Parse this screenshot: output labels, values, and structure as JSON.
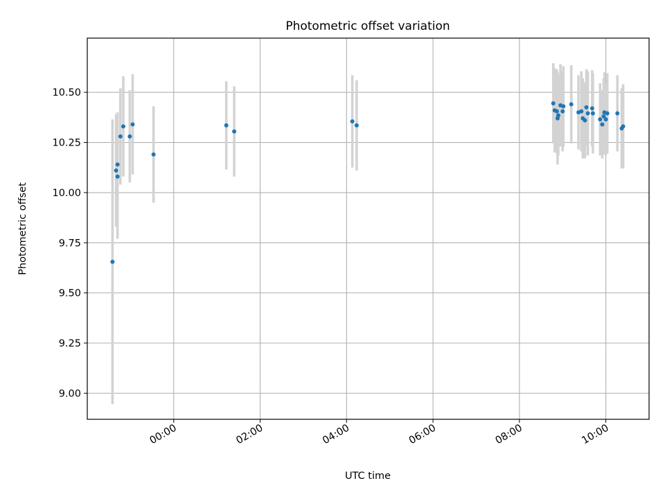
{
  "chart_data": {
    "type": "scatter",
    "title": "Photometric offset variation",
    "xlabel": "UTC time",
    "ylabel": "Photometric offset",
    "xlim": [
      "-02:00",
      "11:00"
    ],
    "ylim": [
      8.87,
      10.77
    ],
    "grid": true,
    "x_ticks": [
      "00:00",
      "02:00",
      "04:00",
      "06:00",
      "08:00",
      "10:00"
    ],
    "y_ticks": [
      "9.00",
      "9.25",
      "9.50",
      "9.75",
      "10.00",
      "10.25",
      "10.50"
    ],
    "colors": {
      "marker": "#1f77b4",
      "errorbar": "#d3d3d3",
      "grid": "#b0b0b0"
    },
    "points": [
      {
        "x": "-01:25",
        "y": 9.655,
        "err": 0.71
      },
      {
        "x": "-01:20",
        "y": 10.11,
        "err": 0.28
      },
      {
        "x": "-01:18",
        "y": 10.14,
        "err": 0.26
      },
      {
        "x": "-01:18",
        "y": 10.08,
        "err": 0.31
      },
      {
        "x": "-01:14",
        "y": 10.28,
        "err": 0.24
      },
      {
        "x": "-01:10",
        "y": 10.33,
        "err": 0.25
      },
      {
        "x": "-01:01",
        "y": 10.28,
        "err": 0.23
      },
      {
        "x": "-00:57",
        "y": 10.34,
        "err": 0.25
      },
      {
        "x": "-00:28",
        "y": 10.19,
        "err": 0.24
      },
      {
        "x": "01:13",
        "y": 10.335,
        "err": 0.22
      },
      {
        "x": "01:24",
        "y": 10.305,
        "err": 0.225
      },
      {
        "x": "04:08",
        "y": 10.355,
        "err": 0.23
      },
      {
        "x": "04:14",
        "y": 10.335,
        "err": 0.225
      },
      {
        "x": "08:47",
        "y": 10.445,
        "err": 0.2
      },
      {
        "x": "08:49",
        "y": 10.41,
        "err": 0.21
      },
      {
        "x": "08:52",
        "y": 10.405,
        "err": 0.21
      },
      {
        "x": "08:53",
        "y": 10.37,
        "err": 0.23
      },
      {
        "x": "08:54",
        "y": 10.385,
        "err": 0.2
      },
      {
        "x": "08:57",
        "y": 10.435,
        "err": 0.205
      },
      {
        "x": "09:00",
        "y": 10.405,
        "err": 0.2
      },
      {
        "x": "09:01",
        "y": 10.43,
        "err": 0.2
      },
      {
        "x": "09:12",
        "y": 10.44,
        "err": 0.195
      },
      {
        "x": "09:22",
        "y": 10.4,
        "err": 0.185
      },
      {
        "x": "09:26",
        "y": 10.405,
        "err": 0.2
      },
      {
        "x": "09:28",
        "y": 10.37,
        "err": 0.2
      },
      {
        "x": "09:31",
        "y": 10.36,
        "err": 0.19
      },
      {
        "x": "09:33",
        "y": 10.425,
        "err": 0.19
      },
      {
        "x": "09:35",
        "y": 10.395,
        "err": 0.21
      },
      {
        "x": "09:41",
        "y": 10.42,
        "err": 0.19
      },
      {
        "x": "09:42",
        "y": 10.395,
        "err": 0.2
      },
      {
        "x": "09:52",
        "y": 10.365,
        "err": 0.18
      },
      {
        "x": "09:55",
        "y": 10.34,
        "err": 0.17
      },
      {
        "x": "09:57",
        "y": 10.38,
        "err": 0.19
      },
      {
        "x": "09:58",
        "y": 10.4,
        "err": 0.2
      },
      {
        "x": "10:00",
        "y": 10.365,
        "err": 0.18
      },
      {
        "x": "10:02",
        "y": 10.395,
        "err": 0.2
      },
      {
        "x": "10:16",
        "y": 10.395,
        "err": 0.19
      },
      {
        "x": "10:22",
        "y": 10.32,
        "err": 0.2
      },
      {
        "x": "10:24",
        "y": 10.33,
        "err": 0.21
      }
    ]
  }
}
